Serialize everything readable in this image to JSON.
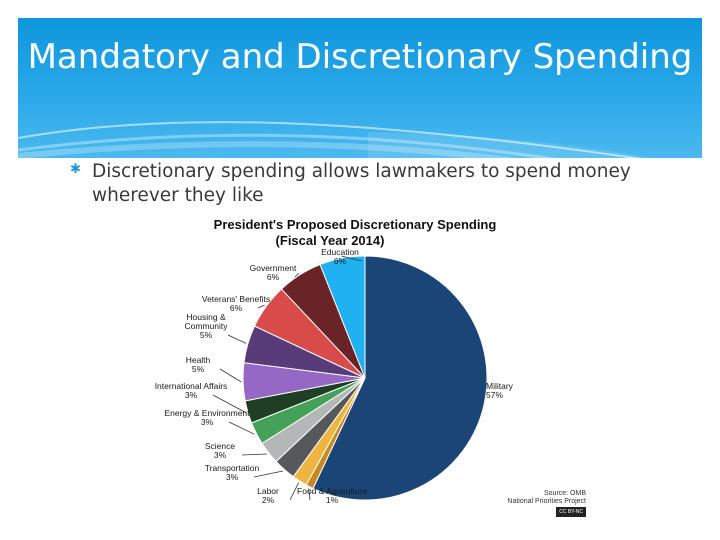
{
  "slide": {
    "title": "Mandatory and Discretionary Spending",
    "bullet": "Discretionary spending allows lawmakers to spend money wherever they like",
    "accent": "#1e9ad6"
  },
  "chart_data": {
    "type": "pie",
    "title": "President's Proposed Discretionary  Spending",
    "subtitle": "(Fiscal Year 2014)",
    "slices": [
      {
        "label": "Military",
        "pct_label": "57%",
        "value": 57,
        "color": "#1c4577"
      },
      {
        "label": "Food & Agriculture",
        "pct_label": "1%",
        "value": 1,
        "color": "#c88a1f"
      },
      {
        "label": "Labor",
        "pct_label": "2%",
        "value": 2,
        "color": "#f0b440"
      },
      {
        "label": "Transportation",
        "pct_label": "3%",
        "value": 3,
        "color": "#55595c"
      },
      {
        "label": "Science",
        "pct_label": "3%",
        "value": 3,
        "color": "#b3b8b6"
      },
      {
        "label": "Energy & Environment",
        "pct_label": "3%",
        "value": 3,
        "color": "#45a05a"
      },
      {
        "label": "International  Affairs",
        "pct_label": "3%",
        "value": 3,
        "color": "#1f3f25"
      },
      {
        "label": "Health",
        "pct_label": "5%",
        "value": 5,
        "color": "#9568c6"
      },
      {
        "label": "Housing &\nCommunity",
        "pct_label": "5%",
        "value": 5,
        "color": "#583c79"
      },
      {
        "label": "Veterans' Benefits",
        "pct_label": "6%",
        "value": 6,
        "color": "#d94a4a"
      },
      {
        "label": "Government",
        "pct_label": "6%",
        "value": 6,
        "color": "#6a2427"
      },
      {
        "label": "Education",
        "pct_label": "6%",
        "value": 6,
        "color": "#1fb1f1"
      }
    ],
    "source_lines": [
      "Source: OMB",
      "National Priorities Project"
    ],
    "license_badge": "CC BY-NC"
  }
}
